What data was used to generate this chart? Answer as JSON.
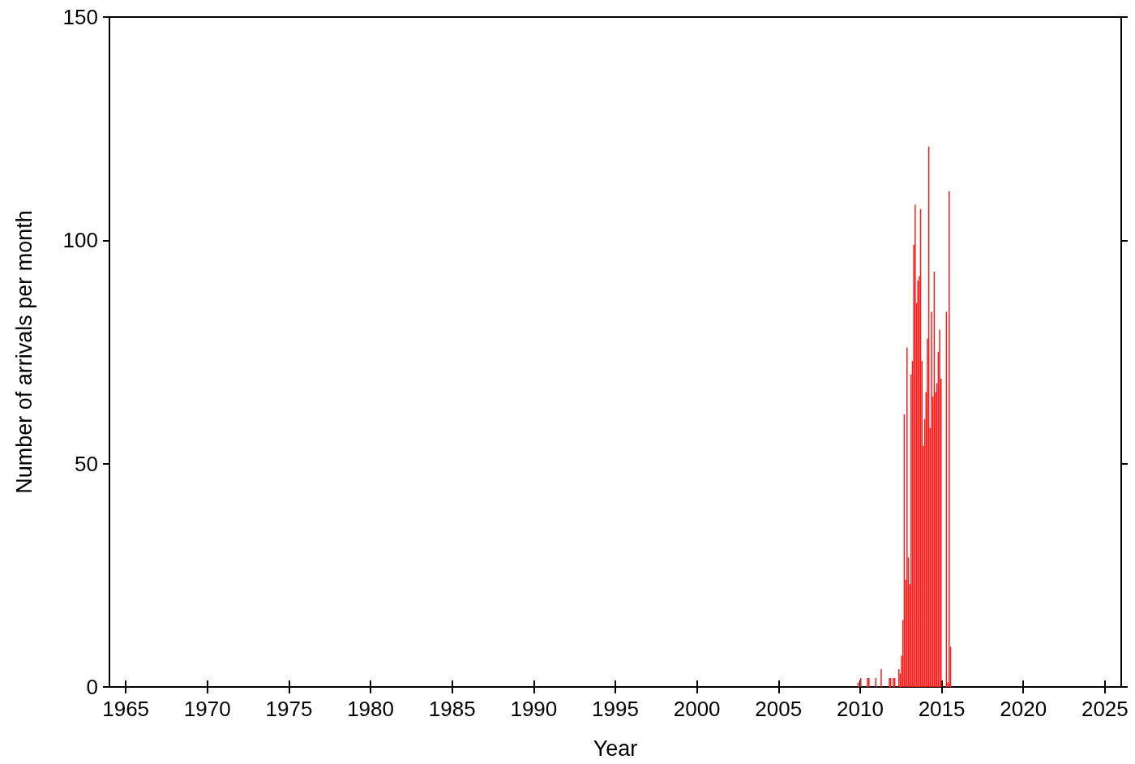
{
  "chart_data": {
    "type": "bar",
    "xlabel": "Year",
    "ylabel": "Number of arrivals per month",
    "color": "#ff1a1a",
    "x": [
      "2009-11",
      "2010-01",
      "2010-06",
      "2010-07",
      "2010-12",
      "2011-04",
      "2011-10",
      "2011-11",
      "2012-01",
      "2012-02",
      "2012-05",
      "2012-06",
      "2012-07",
      "2012-08",
      "2012-09",
      "2012-10",
      "2012-11",
      "2012-12",
      "2013-01",
      "2013-02",
      "2013-03",
      "2013-04",
      "2013-05",
      "2013-06",
      "2013-07",
      "2013-08",
      "2013-09",
      "2013-10",
      "2013-11",
      "2013-12",
      "2014-01",
      "2014-02",
      "2014-03",
      "2014-04",
      "2014-05",
      "2014-06",
      "2014-07",
      "2014-08",
      "2014-09",
      "2014-10",
      "2014-11",
      "2014-12",
      "2015-04",
      "2015-05",
      "2015-06",
      "2015-07"
    ],
    "values": [
      1,
      2,
      2,
      2,
      2,
      4,
      2,
      2,
      2,
      2,
      4,
      3,
      7,
      15,
      61,
      24,
      76,
      29,
      23,
      70,
      73,
      99,
      108,
      86,
      91,
      92,
      107,
      73,
      54,
      60,
      66,
      78,
      121,
      58,
      84,
      65,
      93,
      66,
      68,
      75,
      80,
      69,
      84,
      1,
      111,
      9
    ],
    "xlim": [
      "1964",
      "2026"
    ],
    "xticks": [
      "1965",
      "1970",
      "1975",
      "1980",
      "1985",
      "1990",
      "1995",
      "2000",
      "2005",
      "2010",
      "2015",
      "2020",
      "2025"
    ],
    "ylim": [
      0,
      150
    ],
    "yticks": [
      0,
      50,
      100,
      150
    ],
    "grid": false
  }
}
